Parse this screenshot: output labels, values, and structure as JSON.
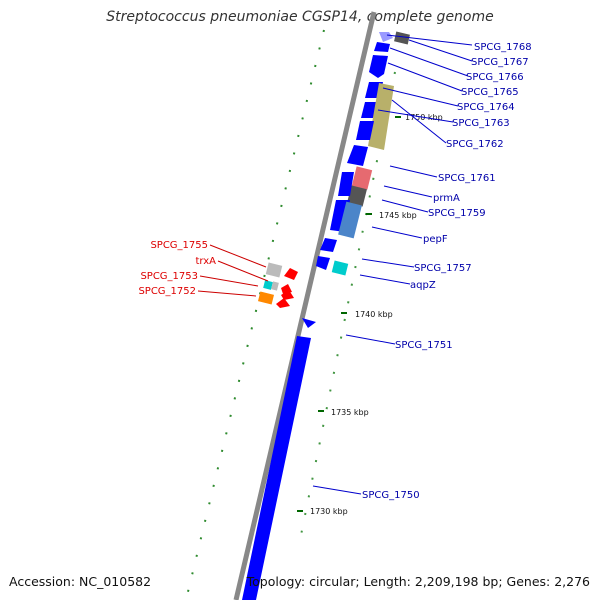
{
  "title": "Streptococcus pneumoniae CGSP14, complete genome",
  "accession": "Accession: NC_010582",
  "topology": "Topology: circular; Length: 2,209,198 bp; Genes: 2,276",
  "colors": {
    "forward_gene": "#0000ff",
    "reverse_label": "#dd0000",
    "forward_label": "#0000aa",
    "tick": "#006600",
    "backbone": "#888888"
  },
  "ticks": [
    {
      "label": "1750 kbp"
    },
    {
      "label": "1745 kbp"
    },
    {
      "label": "1740 kbp"
    },
    {
      "label": "1735 kbp"
    },
    {
      "label": "1730 kbp"
    }
  ],
  "forward_labels": [
    "SPCG_1768",
    "SPCG_1767",
    "SPCG_1766",
    "SPCG_1765",
    "SPCG_1764",
    "SPCG_1763",
    "SPCG_1762",
    "SPCG_1761",
    "prmA",
    "SPCG_1759",
    "pepF",
    "SPCG_1757",
    "aqpZ",
    "SPCG_1751",
    "SPCG_1750"
  ],
  "reverse_labels": [
    "SPCG_1755",
    "trxA",
    "SPCG_1753",
    "SPCG_1752"
  ]
}
